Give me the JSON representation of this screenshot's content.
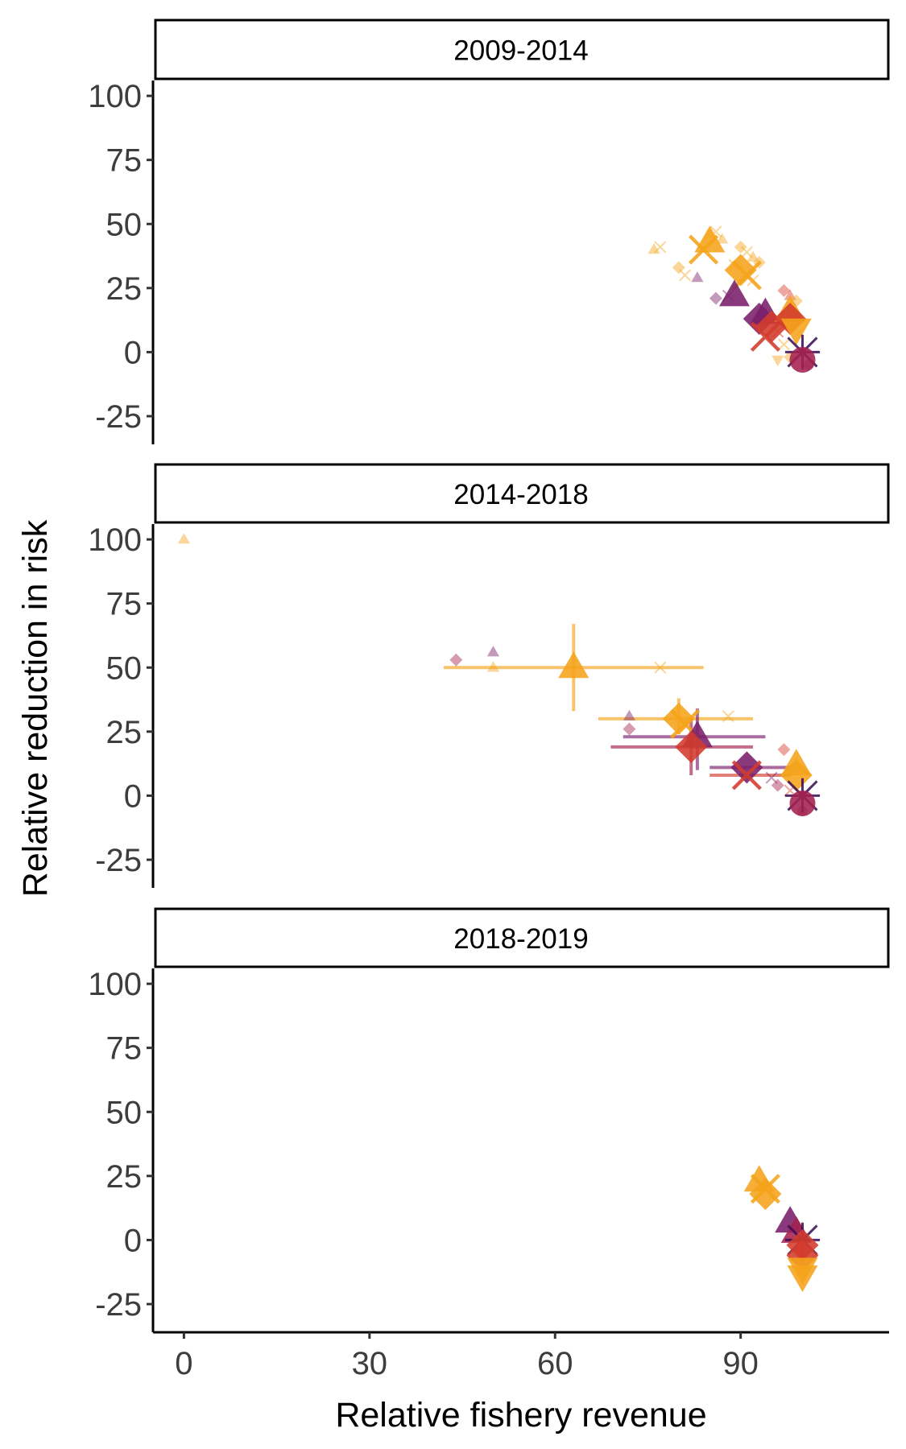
{
  "chart_data": {
    "type": "scatter",
    "xlabel": "Relative fishery revenue",
    "ylabel": "Relative reduction in risk",
    "xlim": [
      -5,
      114
    ],
    "ylim": [
      -36,
      106
    ],
    "x_ticks": [
      0,
      30,
      60,
      90
    ],
    "y_ticks": [
      -25,
      0,
      25,
      50,
      75,
      100
    ],
    "grid": false,
    "legend": "none",
    "colors": {
      "orange": "#f5a31a",
      "red": "#d33b2c",
      "crimson": "#a3214e",
      "purple": "#7a1f6a",
      "dark": "#3b0f55"
    },
    "panels": [
      {
        "title": "2009-2014",
        "points": [
          {
            "x": 85,
            "y": 43,
            "shape": "triangle",
            "color": "#f5a31a",
            "size": "large"
          },
          {
            "x": 84,
            "y": 40,
            "shape": "cross",
            "color": "#f5a31a",
            "size": "large"
          },
          {
            "x": 90,
            "y": 32,
            "shape": "diamond",
            "color": "#f5a31a",
            "size": "large"
          },
          {
            "x": 91,
            "y": 30,
            "shape": "cross",
            "color": "#f5a31a",
            "size": "large"
          },
          {
            "x": 89,
            "y": 22,
            "shape": "triangle",
            "color": "#7a1f6a",
            "size": "large"
          },
          {
            "x": 94,
            "y": 15,
            "shape": "triangle",
            "color": "#7a1f6a",
            "size": "large"
          },
          {
            "x": 93,
            "y": 13,
            "shape": "diamond",
            "color": "#7a1f6a",
            "size": "large"
          },
          {
            "x": 95,
            "y": 10,
            "shape": "diamond",
            "color": "#d33b2c",
            "size": "large"
          },
          {
            "x": 94,
            "y": 6,
            "shape": "cross",
            "color": "#d33b2c",
            "size": "large"
          },
          {
            "x": 98,
            "y": 16,
            "shape": "triangle",
            "color": "#f5a31a",
            "size": "large"
          },
          {
            "x": 98,
            "y": 13,
            "shape": "diamond",
            "color": "#d33b2c",
            "size": "large"
          },
          {
            "x": 99,
            "y": 9,
            "shape": "triangle_down",
            "color": "#f5a31a",
            "size": "large"
          },
          {
            "x": 100,
            "y": 0,
            "shape": "star",
            "color": "#3b0f55",
            "size": "large"
          },
          {
            "x": 100,
            "y": -3,
            "shape": "circle",
            "color": "#a3214e",
            "size": "large"
          },
          {
            "x": 76,
            "y": 40,
            "shape": "triangle",
            "color": "#f5a31a",
            "size": "small"
          },
          {
            "x": 77,
            "y": 41,
            "shape": "cross",
            "color": "#f5a31a",
            "size": "small"
          },
          {
            "x": 80,
            "y": 33,
            "shape": "diamond",
            "color": "#f5a31a",
            "size": "small"
          },
          {
            "x": 81,
            "y": 30,
            "shape": "cross",
            "color": "#f5a31a",
            "size": "small"
          },
          {
            "x": 83,
            "y": 29,
            "shape": "triangle",
            "color": "#7a1f6a",
            "size": "small"
          },
          {
            "x": 86,
            "y": 21,
            "shape": "diamond",
            "color": "#7a1f6a",
            "size": "small"
          },
          {
            "x": 88,
            "y": 22,
            "shape": "cross",
            "color": "#7a1f6a",
            "size": "small"
          },
          {
            "x": 85,
            "y": 46,
            "shape": "triangle",
            "color": "#f5a31a",
            "size": "small"
          },
          {
            "x": 86,
            "y": 47,
            "shape": "cross",
            "color": "#f5a31a",
            "size": "small"
          },
          {
            "x": 87,
            "y": 44,
            "shape": "triangle",
            "color": "#f5a31a",
            "size": "small"
          },
          {
            "x": 90,
            "y": 41,
            "shape": "diamond",
            "color": "#f5a31a",
            "size": "small"
          },
          {
            "x": 91,
            "y": 39,
            "shape": "cross",
            "color": "#f5a31a",
            "size": "small"
          },
          {
            "x": 92,
            "y": 37,
            "shape": "triangle",
            "color": "#f5a31a",
            "size": "small"
          },
          {
            "x": 93,
            "y": 35,
            "shape": "diamond",
            "color": "#f5a31a",
            "size": "small"
          },
          {
            "x": 89,
            "y": 34,
            "shape": "cross",
            "color": "#f5a31a",
            "size": "small"
          },
          {
            "x": 92,
            "y": 28,
            "shape": "cross",
            "color": "#f5a31a",
            "size": "small"
          },
          {
            "x": 97,
            "y": 24,
            "shape": "diamond",
            "color": "#d33b2c",
            "size": "small"
          },
          {
            "x": 98,
            "y": 22,
            "shape": "triangle",
            "color": "#d33b2c",
            "size": "small"
          },
          {
            "x": 99,
            "y": 20,
            "shape": "diamond",
            "color": "#f5a31a",
            "size": "small"
          },
          {
            "x": 96,
            "y": 8,
            "shape": "cross",
            "color": "#d33b2c",
            "size": "small"
          },
          {
            "x": 97,
            "y": 3,
            "shape": "cross",
            "color": "#f5a31a",
            "size": "small"
          },
          {
            "x": 96,
            "y": -3,
            "shape": "triangle_down",
            "color": "#f5a31a",
            "size": "small"
          },
          {
            "x": 98,
            "y": -2,
            "shape": "diamond",
            "color": "#f5a31a",
            "size": "small"
          },
          {
            "x": 101,
            "y": -5,
            "shape": "circle",
            "color": "#a3214e",
            "size": "small"
          }
        ],
        "errorbars": []
      },
      {
        "title": "2014-2018",
        "points": [
          {
            "x": 63,
            "y": 50,
            "shape": "triangle",
            "color": "#f5a31a",
            "size": "large"
          },
          {
            "x": 80,
            "y": 30,
            "shape": "diamond",
            "color": "#f5a31a",
            "size": "large"
          },
          {
            "x": 81,
            "y": 28,
            "shape": "cross",
            "color": "#f5a31a",
            "size": "large"
          },
          {
            "x": 83,
            "y": 23,
            "shape": "triangle",
            "color": "#7a1f6a",
            "size": "large"
          },
          {
            "x": 82,
            "y": 19,
            "shape": "diamond",
            "color": "#d33b2c",
            "size": "large"
          },
          {
            "x": 91,
            "y": 11,
            "shape": "diamond",
            "color": "#7a1f6a",
            "size": "large"
          },
          {
            "x": 91,
            "y": 8,
            "shape": "cross",
            "color": "#d33b2c",
            "size": "large"
          },
          {
            "x": 99,
            "y": 12,
            "shape": "triangle",
            "color": "#f5a31a",
            "size": "large"
          },
          {
            "x": 99,
            "y": 8,
            "shape": "diamond",
            "color": "#f5a31a",
            "size": "large"
          },
          {
            "x": 100,
            "y": 0,
            "shape": "star",
            "color": "#3b0f55",
            "size": "large"
          },
          {
            "x": 100,
            "y": -3,
            "shape": "circle",
            "color": "#a3214e",
            "size": "large"
          },
          {
            "x": 0,
            "y": 100,
            "shape": "triangle",
            "color": "#f5a31a",
            "size": "small"
          },
          {
            "x": 44,
            "y": 53,
            "shape": "diamond",
            "color": "#a3214e",
            "size": "small"
          },
          {
            "x": 50,
            "y": 56,
            "shape": "triangle",
            "color": "#7a1f6a",
            "size": "small"
          },
          {
            "x": 50,
            "y": 50,
            "shape": "triangle",
            "color": "#f5a31a",
            "size": "small"
          },
          {
            "x": 77,
            "y": 50,
            "shape": "cross",
            "color": "#f5a31a",
            "size": "small"
          },
          {
            "x": 72,
            "y": 31,
            "shape": "triangle",
            "color": "#7a1f6a",
            "size": "small"
          },
          {
            "x": 72,
            "y": 26,
            "shape": "diamond",
            "color": "#a3214e",
            "size": "small"
          },
          {
            "x": 88,
            "y": 31,
            "shape": "cross",
            "color": "#f5a31a",
            "size": "small"
          },
          {
            "x": 97,
            "y": 18,
            "shape": "diamond",
            "color": "#d33b2c",
            "size": "small"
          },
          {
            "x": 95,
            "y": 7,
            "shape": "cross",
            "color": "#7a1f6a",
            "size": "small"
          },
          {
            "x": 96,
            "y": 4,
            "shape": "diamond",
            "color": "#a3214e",
            "size": "small"
          },
          {
            "x": 98,
            "y": 2,
            "shape": "cross",
            "color": "#d33b2c",
            "size": "small"
          },
          {
            "x": 100,
            "y": -6,
            "shape": "circle",
            "color": "#a3214e",
            "size": "small"
          }
        ],
        "errorbars": [
          {
            "x": 63,
            "y": 50,
            "xmin": 42,
            "xmax": 84,
            "ymin": 33,
            "ymax": 67,
            "color": "#f5a31a"
          },
          {
            "x": 80,
            "y": 30,
            "xmin": 67,
            "xmax": 92,
            "ymin": 24,
            "ymax": 38,
            "color": "#f5a31a"
          },
          {
            "x": 83,
            "y": 23,
            "xmin": 71,
            "xmax": 94,
            "ymin": 10,
            "ymax": 34,
            "color": "#7a1f6a"
          },
          {
            "x": 82,
            "y": 19,
            "xmin": 69,
            "xmax": 92,
            "ymin": 8,
            "ymax": 30,
            "color": "#a3214e"
          },
          {
            "x": 91,
            "y": 11,
            "xmin": 85,
            "xmax": 99,
            "ymin": null,
            "ymax": null,
            "color": "#7a1f6a"
          },
          {
            "x": 91,
            "y": 8,
            "xmin": 85,
            "xmax": 98,
            "ymin": null,
            "ymax": null,
            "color": "#d33b2c"
          }
        ]
      },
      {
        "title": "2018-2019",
        "points": [
          {
            "x": 93,
            "y": 23,
            "shape": "triangle",
            "color": "#f5a31a",
            "size": "large"
          },
          {
            "x": 94,
            "y": 20,
            "shape": "cross",
            "color": "#f5a31a",
            "size": "large"
          },
          {
            "x": 94,
            "y": 18,
            "shape": "diamond",
            "color": "#f5a31a",
            "size": "large"
          },
          {
            "x": 98,
            "y": 7,
            "shape": "triangle",
            "color": "#7a1f6a",
            "size": "large"
          },
          {
            "x": 99,
            "y": 3,
            "shape": "triangle",
            "color": "#a3214e",
            "size": "large"
          },
          {
            "x": 100,
            "y": 0,
            "shape": "star",
            "color": "#3b0f55",
            "size": "large"
          },
          {
            "x": 100,
            "y": -2,
            "shape": "diamond",
            "color": "#d33b2c",
            "size": "large"
          },
          {
            "x": 100,
            "y": -6,
            "shape": "diamond",
            "color": "#d33b2c",
            "size": "large"
          },
          {
            "x": 100,
            "y": -11,
            "shape": "triangle_down",
            "color": "#f5a31a",
            "size": "large"
          },
          {
            "x": 100,
            "y": -14,
            "shape": "triangle_down",
            "color": "#f5a31a",
            "size": "large"
          }
        ],
        "errorbars": []
      }
    ]
  }
}
